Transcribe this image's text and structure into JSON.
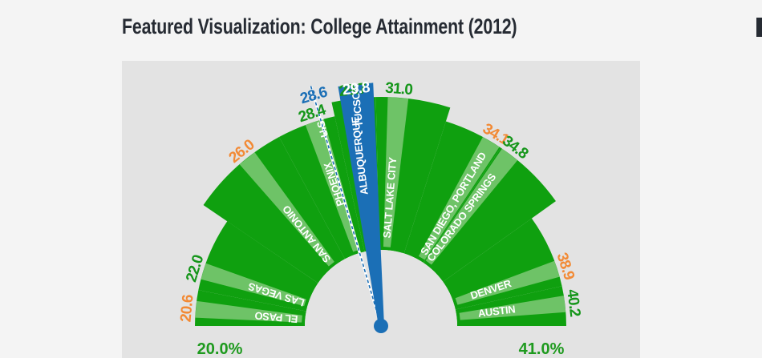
{
  "page": {
    "title": "Featured Visualization: College Attainment (2012)"
  },
  "colors": {
    "arc_green": "#0fa00f",
    "band_light": "#8fcf86",
    "value_green": "#15961a",
    "value_orange": "#f28a35",
    "highlight_blue": "#1b6fb6",
    "hub_white": "#e3e3e3"
  },
  "chart_data": {
    "type": "gauge",
    "title": "Featured Visualization: College Attainment (2012)",
    "unit": "%",
    "range": [
      20.0,
      41.0
    ],
    "range_labels": [
      "20.0%",
      "41.0%"
    ],
    "highlight": "TUCSON",
    "reference": {
      "name": "U.S.",
      "value": 28.6,
      "value_label": "28.6"
    },
    "cities": [
      {
        "name": "EL PASO",
        "value": 20.6,
        "value_label": "20.6",
        "color": "orange"
      },
      {
        "name": "LAS VEGAS",
        "value": 22.0,
        "value_label": "22.0",
        "color": "green"
      },
      {
        "name": "SAN ANTONIO",
        "value": 26.0,
        "value_label": "26.0",
        "color": "orange"
      },
      {
        "name": "PHOENIX",
        "value": 28.4,
        "value_label": "28.4",
        "color": "green"
      },
      {
        "name": "ALBUQUERQUE",
        "value": 29.7,
        "value_label": "29.7",
        "color": "green"
      },
      {
        "name": "TUCSON",
        "value": 29.8,
        "value_label": "29.8",
        "color": "blue"
      },
      {
        "name": "SALT LAKE CITY",
        "value": 31.0,
        "value_label": "31.0",
        "color": "green"
      },
      {
        "name": "SAN DIEGO, PORTLAND",
        "value": 34.1,
        "value_label": "34.1",
        "color": "orange"
      },
      {
        "name": "COLORADO SPRINGS",
        "value": 34.8,
        "value_label": "34.8",
        "color": "green"
      },
      {
        "name": "DENVER",
        "value": 38.9,
        "value_label": "38.9",
        "color": "orange"
      },
      {
        "name": "AUSTIN",
        "value": 40.2,
        "value_label": "40.2",
        "color": "green"
      }
    ]
  }
}
